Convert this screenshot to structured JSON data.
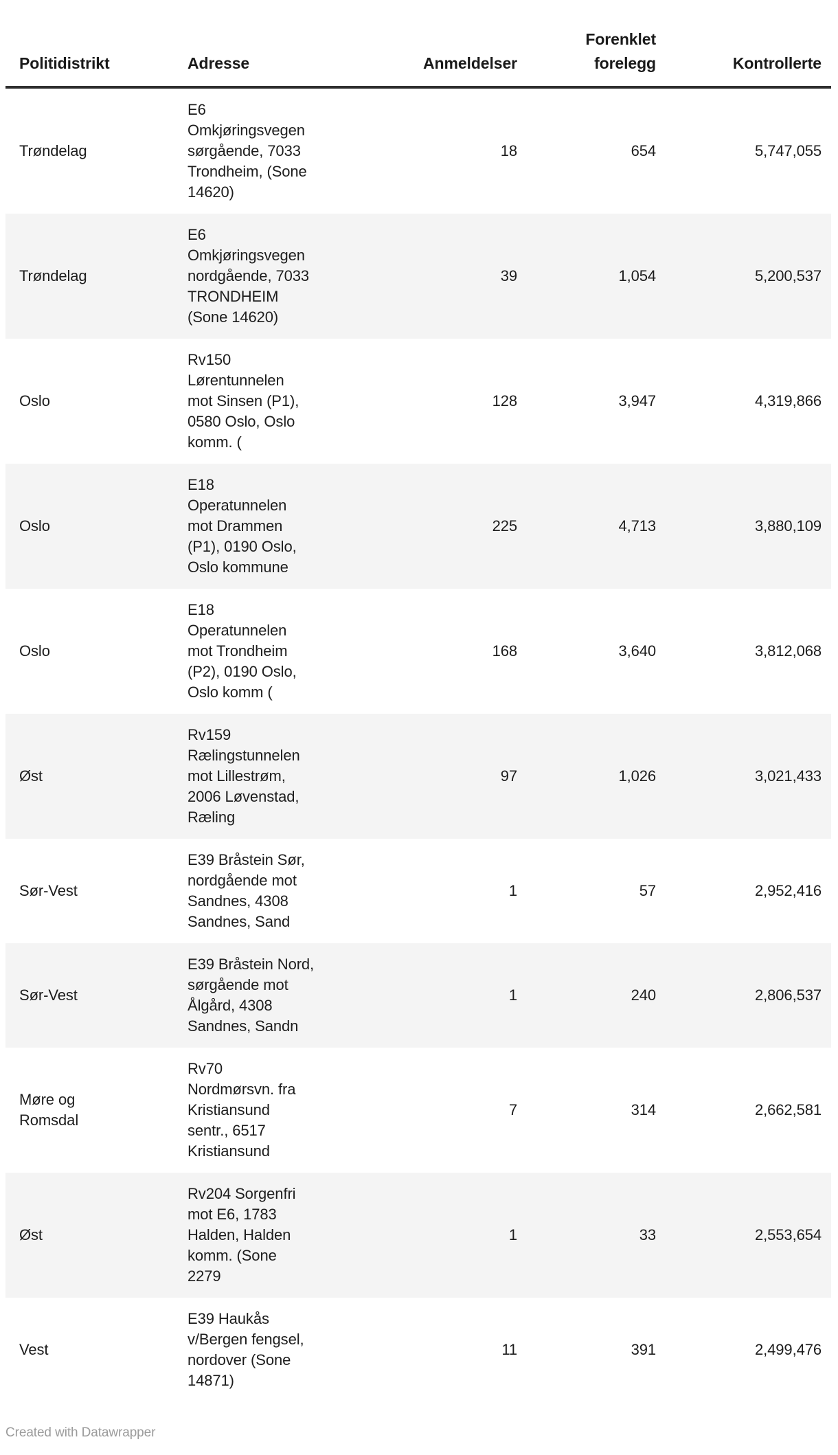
{
  "table": {
    "columns": {
      "district": "Politidistrikt",
      "address": "Adresse",
      "reports": "Anmeldelser",
      "fines": "Forenklet\nforelegg",
      "controlled": "Kontrollerte"
    },
    "rows": [
      {
        "district": "Trøndelag",
        "address": "E6\nOmkjøringsvegen\nsørgående, 7033\nTrondheim, (Sone\n14620)",
        "reports": "18",
        "fines": "654",
        "controlled": "5,747,055"
      },
      {
        "district": "Trøndelag",
        "address": "E6\nOmkjøringsvegen\nnordgående, 7033\nTRONDHEIM\n(Sone 14620)",
        "reports": "39",
        "fines": "1,054",
        "controlled": "5,200,537"
      },
      {
        "district": "Oslo",
        "address": "Rv150\nLørentunnelen\nmot Sinsen (P1),\n0580 Oslo, Oslo\nkomm. (",
        "reports": "128",
        "fines": "3,947",
        "controlled": "4,319,866"
      },
      {
        "district": "Oslo",
        "address": "E18\nOperatunnelen\nmot Drammen\n(P1), 0190 Oslo,\nOslo kommune",
        "reports": "225",
        "fines": "4,713",
        "controlled": "3,880,109"
      },
      {
        "district": "Oslo",
        "address": "E18\nOperatunnelen\nmot Trondheim\n(P2), 0190 Oslo,\nOslo komm (",
        "reports": "168",
        "fines": "3,640",
        "controlled": "3,812,068"
      },
      {
        "district": "Øst",
        "address": "Rv159\nRælingstunnelen\nmot Lillestrøm,\n2006 Løvenstad,\nRæling",
        "reports": "97",
        "fines": "1,026",
        "controlled": "3,021,433"
      },
      {
        "district": "Sør-Vest",
        "address": "E39 Bråstein Sør,\nnordgående mot\nSandnes, 4308\nSandnes, Sand",
        "reports": "1",
        "fines": "57",
        "controlled": "2,952,416"
      },
      {
        "district": "Sør-Vest",
        "address": "E39 Bråstein Nord,\nsørgående mot\nÅlgård, 4308\nSandnes, Sandn",
        "reports": "1",
        "fines": "240",
        "controlled": "2,806,537"
      },
      {
        "district": "Møre og\nRomsdal",
        "address": "Rv70\nNordmørsvn. fra\nKristiansund\nsentr., 6517\nKristiansund",
        "reports": "7",
        "fines": "314",
        "controlled": "2,662,581"
      },
      {
        "district": "Øst",
        "address": "Rv204 Sorgenfri\nmot E6, 1783\nHalden, Halden\nkomm. (Sone\n2279",
        "reports": "1",
        "fines": "33",
        "controlled": "2,553,654"
      },
      {
        "district": "Vest",
        "address": "E39 Haukås\nv/Bergen fengsel,\nnordover (Sone\n14871)",
        "reports": "11",
        "fines": "391",
        "controlled": "2,499,476"
      }
    ],
    "stripe_color": "#f4f4f4",
    "header_border_color": "#2e2e2e"
  },
  "footer": {
    "credit": "Created with Datawrapper"
  },
  "chart_data": {
    "type": "table",
    "title": "",
    "columns": [
      "Politidistrikt",
      "Adresse",
      "Anmeldelser",
      "Forenklet forelegg",
      "Kontrollerte"
    ],
    "rows": [
      [
        "Trøndelag",
        "E6 Omkjøringsvegen sørgående, 7033 Trondheim, (Sone 14620)",
        18,
        654,
        5747055
      ],
      [
        "Trøndelag",
        "E6 Omkjøringsvegen nordgående, 7033 TRONDHEIM (Sone 14620)",
        39,
        1054,
        5200537
      ],
      [
        "Oslo",
        "Rv150 Lørentunnelen mot Sinsen (P1), 0580 Oslo, Oslo komm. (",
        128,
        3947,
        4319866
      ],
      [
        "Oslo",
        "E18 Operatunnelen mot Drammen (P1), 0190 Oslo, Oslo kommune",
        225,
        4713,
        3880109
      ],
      [
        "Oslo",
        "E18 Operatunnelen mot Trondheim (P2), 0190 Oslo, Oslo komm (",
        168,
        3640,
        3812068
      ],
      [
        "Øst",
        "Rv159 Rælingstunnelen mot Lillestrøm, 2006 Løvenstad, Ræling",
        97,
        1026,
        3021433
      ],
      [
        "Sør-Vest",
        "E39 Bråstein Sør, nordgående mot Sandnes, 4308 Sandnes, Sand",
        1,
        57,
        2952416
      ],
      [
        "Sør-Vest",
        "E39 Bråstein Nord, sørgående mot Ålgård, 4308 Sandnes, Sandn",
        1,
        240,
        2806537
      ],
      [
        "Møre og Romsdal",
        "Rv70 Nordmørsvn. fra Kristiansund sentr., 6517 Kristiansund",
        7,
        314,
        2662581
      ],
      [
        "Øst",
        "Rv204 Sorgenfri mot E6, 1783 Halden, Halden komm. (Sone 2279",
        1,
        33,
        2553654
      ],
      [
        "Vest",
        "E39 Haukås v/Bergen fengsel, nordover (Sone 14871)",
        11,
        391,
        2499476
      ]
    ],
    "number_format": "thousands comma separators",
    "legend_position": "none",
    "grid": "zebra-striping on even rows"
  }
}
